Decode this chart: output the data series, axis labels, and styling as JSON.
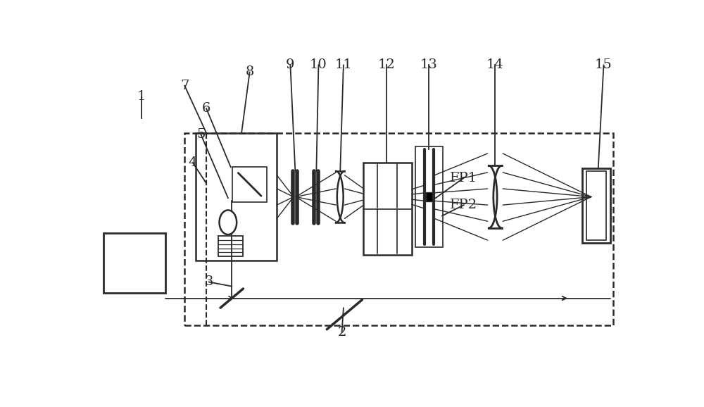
{
  "bg_color": "#ffffff",
  "line_color": "#2a2a2a",
  "fig_width": 10.0,
  "fig_height": 5.78,
  "dpi": 100
}
